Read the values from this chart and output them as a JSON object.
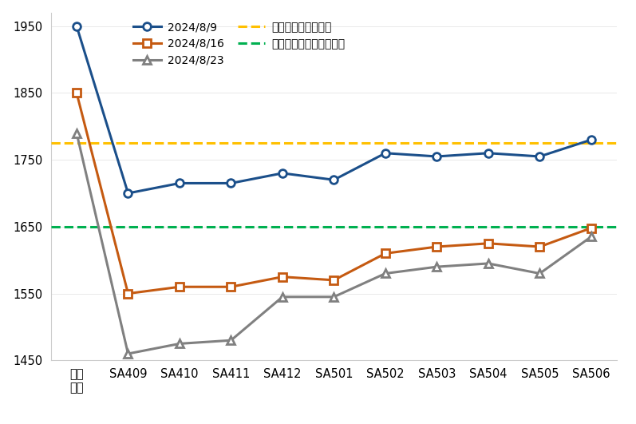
{
  "categories": [
    "华中\n现货",
    "SA409",
    "SA410",
    "SA411",
    "SA412",
    "SA501",
    "SA502",
    "SA503",
    "SA504",
    "SA505",
    "SA506"
  ],
  "series_2024_8_9": [
    1950,
    1700,
    1715,
    1715,
    1730,
    1720,
    1760,
    1755,
    1760,
    1755,
    1780
  ],
  "series_2024_8_16": [
    1850,
    1550,
    1560,
    1560,
    1575,
    1570,
    1610,
    1620,
    1625,
    1620,
    1648
  ],
  "series_2024_8_23": [
    1790,
    1460,
    1475,
    1480,
    1545,
    1545,
    1580,
    1590,
    1595,
    1580,
    1635
  ],
  "hline_yellow": 1775,
  "hline_green": 1650,
  "color_blue": "#1B4F8A",
  "color_orange": "#C55A11",
  "color_gray": "#808080",
  "color_yellow": "#FFC000",
  "color_green": "#00B050",
  "ylim_min": 1450,
  "ylim_max": 1970,
  "yticks": [
    1450,
    1550,
    1650,
    1750,
    1850,
    1950
  ],
  "legend_2024_8_9": "2024/8/9",
  "legend_2024_8_16": "2024/8/16",
  "legend_2024_8_23": "2024/8/23",
  "legend_yellow": "氨碱法成本（隆众）",
  "legend_green": "氨碱法现金成本（估算）",
  "background_color": "#ffffff"
}
